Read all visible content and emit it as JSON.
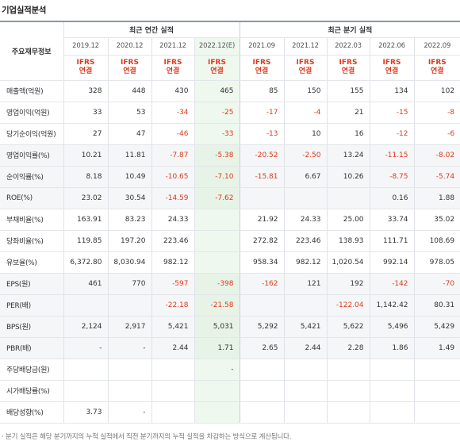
{
  "section_title": "기업실적분석",
  "header": {
    "row_label": "주요재무정보",
    "annual_group": "최근 연간 실적",
    "quarter_group": "최근 분기 실적",
    "periods": [
      "2019.12",
      "2020.12",
      "2021.12",
      "2022.12(E)",
      "2021.09",
      "2021.12",
      "2022.03",
      "2022.06",
      "2022.09"
    ],
    "basis_top": "IFRS",
    "basis_bottom": "연결"
  },
  "rows": [
    {
      "label": "매출액(억원)",
      "values": [
        "328",
        "448",
        "430",
        "465",
        "85",
        "150",
        "155",
        "134",
        "102"
      ]
    },
    {
      "label": "영업이익(억원)",
      "values": [
        "33",
        "53",
        "-34",
        "-25",
        "-17",
        "-4",
        "21",
        "-15",
        "-8"
      ]
    },
    {
      "label": "당기순이익(억원)",
      "values": [
        "27",
        "47",
        "-46",
        "-33",
        "-13",
        "10",
        "16",
        "-12",
        "-6"
      ]
    },
    {
      "label": "영업이익률(%)",
      "values": [
        "10.21",
        "11.81",
        "-7.87",
        "-5.38",
        "-20.52",
        "-2.50",
        "13.24",
        "-11.15",
        "-8.02"
      ]
    },
    {
      "label": "순이익률(%)",
      "values": [
        "8.18",
        "10.49",
        "-10.65",
        "-7.10",
        "-15.81",
        "6.67",
        "10.26",
        "-8.75",
        "-5.74"
      ]
    },
    {
      "label": "ROE(%)",
      "values": [
        "23.02",
        "30.54",
        "-14.59",
        "-7.62",
        "",
        "",
        "",
        "0.16",
        "1.88"
      ]
    },
    {
      "label": "부채비율(%)",
      "values": [
        "163.91",
        "83.23",
        "24.33",
        "",
        "21.92",
        "24.33",
        "25.00",
        "33.74",
        "35.02"
      ]
    },
    {
      "label": "당좌비율(%)",
      "values": [
        "119.85",
        "197.20",
        "223.46",
        "",
        "272.82",
        "223.46",
        "138.93",
        "111.71",
        "108.69"
      ]
    },
    {
      "label": "유보율(%)",
      "values": [
        "6,372.80",
        "8,030.94",
        "982.12",
        "",
        "958.34",
        "982.12",
        "1,020.54",
        "992.14",
        "978.05"
      ]
    },
    {
      "label": "EPS(원)",
      "values": [
        "461",
        "770",
        "-597",
        "-398",
        "-162",
        "121",
        "192",
        "-142",
        "-70"
      ]
    },
    {
      "label": "PER(배)",
      "values": [
        "",
        "",
        "-22.18",
        "-21.58",
        "",
        "",
        "-122.04",
        "1,142.42",
        "80.31"
      ]
    },
    {
      "label": "BPS(원)",
      "values": [
        "2,124",
        "2,917",
        "5,421",
        "5,031",
        "5,292",
        "5,421",
        "5,622",
        "5,496",
        "5,429"
      ]
    },
    {
      "label": "PBR(배)",
      "values": [
        "-",
        "-",
        "2.44",
        "1.71",
        "2.65",
        "2.44",
        "2.28",
        "1.86",
        "1.49"
      ]
    },
    {
      "label": "주당배당금(원)",
      "values": [
        "",
        "",
        "",
        "-",
        "",
        "",
        "",
        "",
        ""
      ]
    },
    {
      "label": "시가배당률(%)",
      "values": [
        "",
        "",
        "",
        "",
        "",
        "",
        "",
        "",
        ""
      ]
    },
    {
      "label": "배당성향(%)",
      "values": [
        "3.73",
        "-",
        "",
        "",
        "",
        "",
        "",
        "",
        ""
      ]
    }
  ],
  "footnote": "· 분기 실적은 해당 분기까지의 누적 실적에서 직전 분기까지의 누적 실적을 차감하는 방식으로 계산됩니다."
}
